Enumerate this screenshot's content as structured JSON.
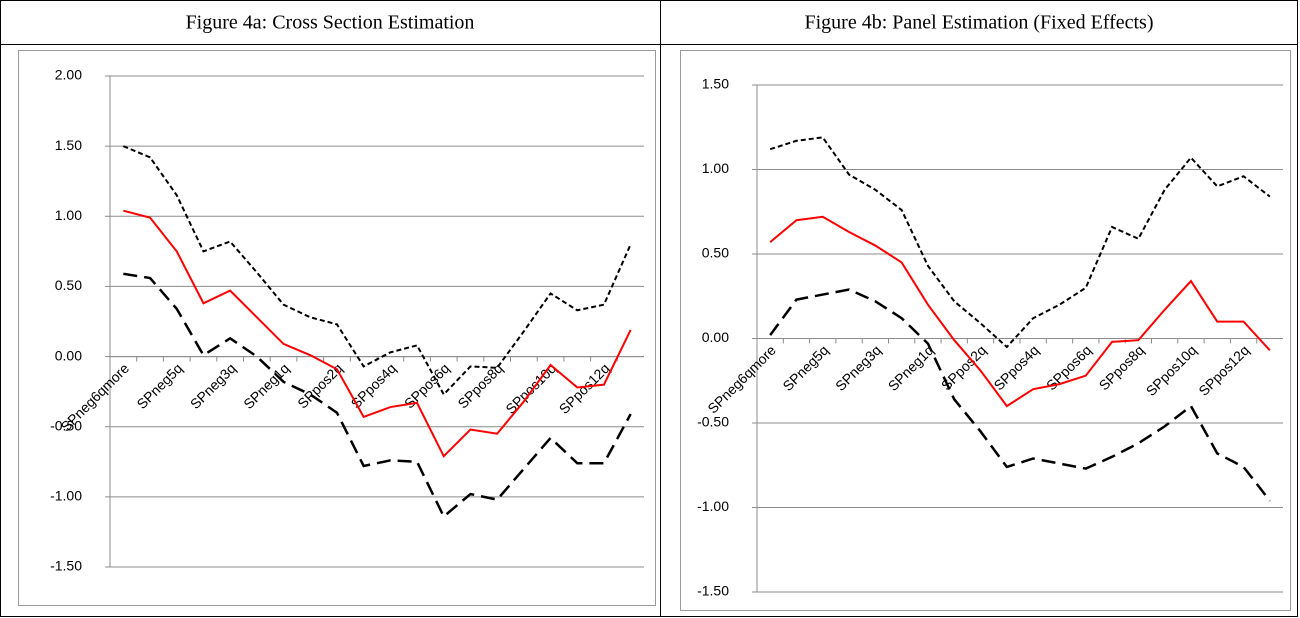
{
  "chart_data": [
    {
      "type": "line",
      "title": "Figure 4a: Cross Section Estimation",
      "categories": [
        "SPneg6qmore",
        null,
        "SPneg5q",
        null,
        "SPneg3q",
        null,
        "SPneg1q",
        null,
        "SPpos2q",
        null,
        "SPpos4q",
        null,
        "SPpos6q",
        null,
        "SPpos8q",
        null,
        "SPpos10q",
        null,
        "SPpos12q",
        null
      ],
      "series": [
        {
          "color": "#000000",
          "line_style": "dotted",
          "values": [
            1.5,
            1.42,
            1.15,
            0.75,
            0.82,
            0.6,
            0.37,
            0.28,
            0.23,
            -0.07,
            0.03,
            0.08,
            -0.27,
            -0.07,
            -0.08,
            0.18,
            0.45,
            0.33,
            0.37,
            0.8
          ]
        },
        {
          "color": "#ff0000",
          "line_style": "solid",
          "values": [
            1.04,
            0.99,
            0.75,
            0.38,
            0.47,
            0.28,
            0.09,
            0.01,
            -0.09,
            -0.43,
            -0.36,
            -0.33,
            -0.71,
            -0.52,
            -0.55,
            -0.32,
            -0.06,
            -0.22,
            -0.2,
            0.19
          ]
        },
        {
          "color": "#000000",
          "line_style": "dashed",
          "values": [
            0.59,
            0.56,
            0.34,
            0.01,
            0.13,
            0.0,
            -0.18,
            -0.27,
            -0.4,
            -0.78,
            -0.74,
            -0.75,
            -1.14,
            -0.98,
            -1.02,
            -0.8,
            -0.58,
            -0.76,
            -0.76,
            -0.41
          ]
        }
      ],
      "ylim": [
        -1.5,
        2.0
      ],
      "yticks": [
        {
          "value": -1.5,
          "label": "-1.50"
        },
        {
          "value": -1,
          "label": "-1.00"
        },
        {
          "value": -0.5,
          "label": "-0.50"
        },
        {
          "value": 0,
          "label": "0.00"
        },
        {
          "value": 0.5,
          "label": "0.50"
        },
        {
          "value": 1,
          "label": "1.00"
        },
        {
          "value": 1.5,
          "label": "1.50"
        },
        {
          "value": 2,
          "label": "2.00"
        }
      ],
      "grid": true
    },
    {
      "type": "line",
      "title": "Figure 4b: Panel Estimation (Fixed Effects)",
      "categories": [
        "SPneg6qmore",
        null,
        "SPneg5q",
        null,
        "SPneg3q",
        null,
        "SPneg1q",
        null,
        "SPpos2q",
        null,
        "SPpos4q",
        null,
        "SPpos6q",
        null,
        "SPpos8q",
        null,
        "SPpos10q",
        null,
        "SPpos12q",
        null
      ],
      "series": [
        {
          "color": "#000000",
          "line_style": "dotted",
          "values": [
            1.12,
            1.17,
            1.19,
            0.97,
            0.88,
            0.76,
            0.43,
            0.22,
            0.09,
            -0.05,
            0.12,
            0.2,
            0.3,
            0.66,
            0.59,
            0.88,
            1.07,
            0.9,
            0.96,
            0.84
          ]
        },
        {
          "color": "#ff0000",
          "line_style": "solid",
          "values": [
            0.57,
            0.7,
            0.72,
            0.63,
            0.55,
            0.45,
            0.2,
            -0.01,
            -0.19,
            -0.4,
            -0.3,
            -0.27,
            -0.22,
            -0.02,
            -0.01,
            0.17,
            0.34,
            0.1,
            0.1,
            -0.07
          ]
        },
        {
          "color": "#000000",
          "line_style": "dashed",
          "values": [
            0.02,
            0.23,
            0.26,
            0.29,
            0.22,
            0.12,
            -0.03,
            -0.36,
            -0.55,
            -0.76,
            -0.71,
            -0.74,
            -0.77,
            -0.7,
            -0.62,
            -0.52,
            -0.4,
            -0.68,
            -0.76,
            -0.96
          ]
        }
      ],
      "ylim": [
        -1.5,
        1.5
      ],
      "yticks": [
        {
          "value": -1.5,
          "label": "-1.50"
        },
        {
          "value": -1,
          "label": "-1.00"
        },
        {
          "value": -0.5,
          "label": "-0.50"
        },
        {
          "value": 0,
          "label": "0.00"
        },
        {
          "value": 0.5,
          "label": "0.50"
        },
        {
          "value": 1,
          "label": "1.00"
        },
        {
          "value": 1.5,
          "label": "1.50"
        }
      ],
      "grid": true
    }
  ]
}
